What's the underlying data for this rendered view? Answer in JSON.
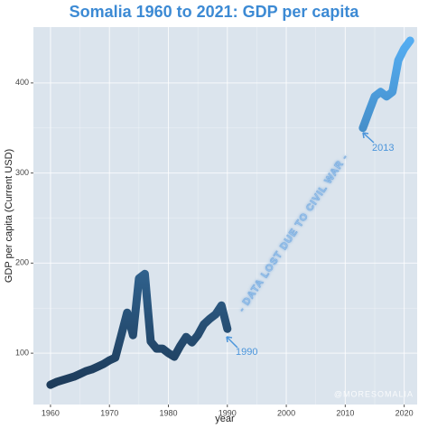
{
  "chart_data": {
    "type": "line",
    "title": "Somalia 1960 to 2021: GDP per capita",
    "x_label": "year",
    "y_label": "GDP per capita (Current USD)",
    "x": [
      1960,
      1961,
      1962,
      1963,
      1964,
      1965,
      1966,
      1967,
      1968,
      1969,
      1970,
      1971,
      1972,
      1973,
      1974,
      1975,
      1976,
      1977,
      1978,
      1979,
      1980,
      1981,
      1982,
      1983,
      1984,
      1985,
      1986,
      1987,
      1988,
      1989,
      1990,
      1991,
      1992,
      1993,
      1994,
      1995,
      1996,
      1997,
      1998,
      1999,
      2000,
      2001,
      2002,
      2003,
      2004,
      2005,
      2006,
      2007,
      2008,
      2009,
      2010,
      2011,
      2012,
      2013,
      2014,
      2015,
      2016,
      2017,
      2018,
      2019,
      2020,
      2021
    ],
    "series": [
      {
        "name": "GDP per capita",
        "colors": [
          "#1a3552",
          "#56b1f7"
        ],
        "values": [
          65,
          68,
          70,
          72,
          74,
          77,
          80,
          82,
          85,
          88,
          92,
          95,
          120,
          145,
          120,
          183,
          188,
          113,
          105,
          105,
          100,
          96,
          108,
          118,
          112,
          120,
          132,
          138,
          143,
          153,
          127,
          null,
          null,
          null,
          null,
          null,
          null,
          null,
          null,
          null,
          null,
          null,
          null,
          null,
          null,
          null,
          null,
          null,
          null,
          null,
          null,
          null,
          null,
          350,
          368,
          385,
          390,
          385,
          390,
          425,
          438,
          447
        ]
      }
    ],
    "xlim": [
      1957.1,
      2022.2
    ],
    "ylim": [
      43,
      462
    ],
    "xticks": [
      1960,
      1970,
      1980,
      1990,
      2000,
      2010,
      2020
    ],
    "yticks": [
      100,
      200,
      300,
      400
    ],
    "grid": true,
    "annotations": [
      "- DATA LOST DUE TO CIVIL WAR -",
      "1990",
      "2013"
    ],
    "watermark": "@MORESOMALIA"
  }
}
